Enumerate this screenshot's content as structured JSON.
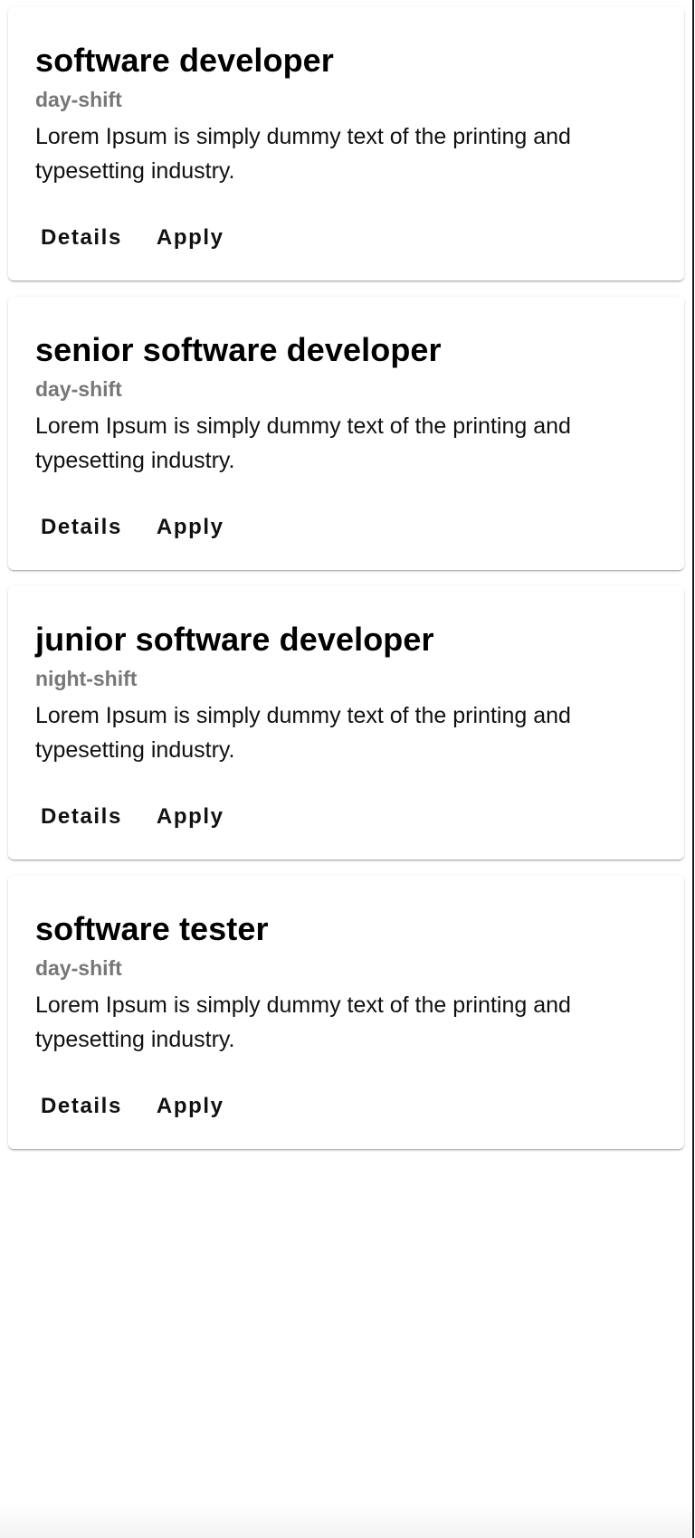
{
  "jobs": [
    {
      "title": "software developer",
      "shift": "day-shift",
      "description": "Lorem Ipsum is simply dummy text of the printing and typesetting industry.",
      "details_label": "Details",
      "apply_label": "Apply"
    },
    {
      "title": "senior software developer",
      "shift": "day-shift",
      "description": "Lorem Ipsum is simply dummy text of the printing and typesetting industry.",
      "details_label": "Details",
      "apply_label": "Apply"
    },
    {
      "title": "junior software developer",
      "shift": "night-shift",
      "description": "Lorem Ipsum is simply dummy text of the printing and typesetting industry.",
      "details_label": "Details",
      "apply_label": "Apply"
    },
    {
      "title": "software tester",
      "shift": "day-shift",
      "description": "Lorem Ipsum is simply dummy text of the printing and typesetting industry.",
      "details_label": "Details",
      "apply_label": "Apply"
    }
  ]
}
